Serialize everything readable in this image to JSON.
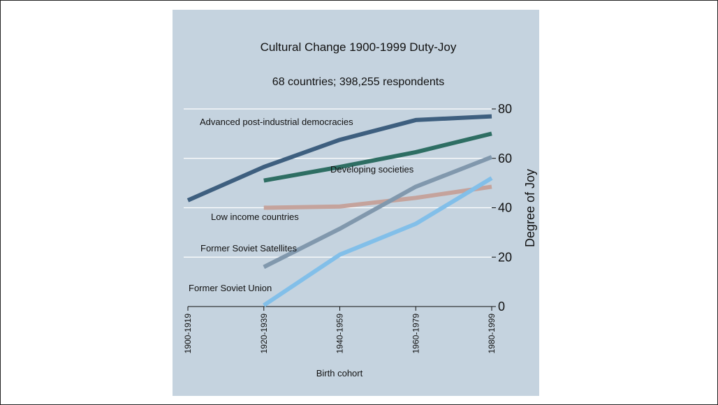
{
  "chart_data": {
    "type": "line",
    "title": "Cultural Change 1900-1999 Duty-Joy",
    "subtitle": "68 countries; 398,255 respondents",
    "xlabel": "Birth cohort",
    "ylabel": "Degree of Joy",
    "categories": [
      "1900-1919",
      "1920-1939",
      "1940-1959",
      "1960-1979",
      "1980-1999"
    ],
    "yticks": [
      0,
      20,
      40,
      60,
      80
    ],
    "ylim": [
      0,
      80
    ],
    "grid": true,
    "series": [
      {
        "name": "Advanced post-industrial democracies",
        "color": "#3e5f7f",
        "values": [
          43,
          56.5,
          67.5,
          75.5,
          77
        ]
      },
      {
        "name": "Developing societies",
        "color": "#2e6e63",
        "values": [
          null,
          51,
          56.5,
          62.5,
          70
        ]
      },
      {
        "name": "Low income countries",
        "color": "#c5a39c",
        "values": [
          null,
          40,
          40.5,
          44,
          48.5
        ]
      },
      {
        "name": "Former Soviet Satellites",
        "color": "#8198ad",
        "values": [
          null,
          16,
          31.5,
          48.5,
          60.5
        ]
      },
      {
        "name": "Former Soviet Union",
        "color": "#82bfe9",
        "values": [
          null,
          0.5,
          21,
          33.5,
          52
        ]
      }
    ]
  }
}
